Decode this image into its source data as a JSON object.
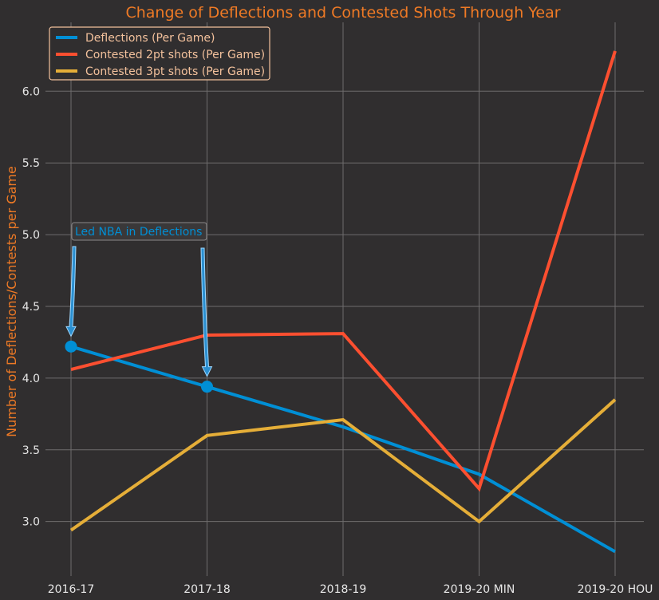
{
  "chart_data": {
    "type": "line",
    "title": "Change of Deflections and Contested Shots Through Year",
    "xlabel": "",
    "ylabel": "Number of Deflections/Contests per Game",
    "categories": [
      "2016-17",
      "2017-18",
      "2018-19",
      "2019-20 MIN",
      "2019-20 HOU"
    ],
    "ylim": [
      2.62,
      6.48
    ],
    "yticks": [
      3.0,
      3.5,
      4.0,
      4.5,
      5.0,
      5.5,
      6.0
    ],
    "grid": true,
    "legend_position": "top-left",
    "series": [
      {
        "name": "Deflections (Per Game)",
        "color": "#008fd5",
        "values": [
          4.22,
          3.94,
          3.66,
          3.33,
          2.79
        ]
      },
      {
        "name": "Contested 2pt shots (Per Game)",
        "color": "#fc4f30",
        "values": [
          4.06,
          4.3,
          4.31,
          3.23,
          6.28
        ]
      },
      {
        "name": "Contested 3pt shots (Per Game)",
        "color": "#e5ae38",
        "values": [
          2.94,
          3.6,
          3.71,
          3.0,
          3.85
        ]
      }
    ],
    "annotation": {
      "text": "Led NBA in Deflections",
      "color": "#008fd5",
      "series_index": 0,
      "point_indices": [
        0,
        1
      ]
    }
  },
  "colors": {
    "background": "#302e2f",
    "grid": "#6e6c6d",
    "title": "#ef7a25",
    "tick_label": "#e6e6e6",
    "legend_text": "#f3c19c",
    "legend_border": "#f3c19c"
  }
}
